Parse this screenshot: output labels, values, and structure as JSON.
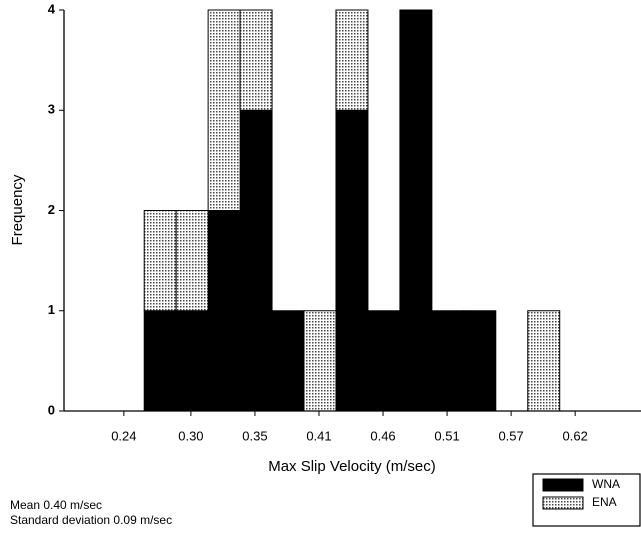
{
  "chart_data": {
    "type": "stacked_histogram",
    "xlabel": "Max Slip Velocity (m/sec)",
    "ylabel": "Frequency",
    "bins": [
      0.261,
      0.2877,
      0.3144,
      0.3411,
      0.3678,
      0.3945,
      0.4212,
      0.4479,
      0.4746,
      0.5013,
      0.528,
      0.5547,
      0.5814,
      0.6081
    ],
    "series": [
      {
        "name": "WNA",
        "color": "#000000",
        "values": [
          1,
          1,
          2,
          3,
          1,
          0,
          3,
          1,
          4,
          1,
          1,
          0,
          0
        ]
      },
      {
        "name": "ENA",
        "color": "#9a9a9a",
        "values": [
          1,
          1,
          2,
          1,
          0,
          1,
          1,
          0,
          0,
          0,
          0,
          0,
          1
        ]
      }
    ],
    "xlim": [
      0.194,
      0.676
    ],
    "ylim": [
      0,
      4
    ],
    "xticks": [
      {
        "value": 0.244,
        "label": "0.24"
      },
      {
        "value": 0.3,
        "label": "0.30"
      },
      {
        "value": 0.3535,
        "label": "0.35"
      },
      {
        "value": 0.407,
        "label": "0.41"
      },
      {
        "value": 0.4605,
        "label": "0.46"
      },
      {
        "value": 0.514,
        "label": "0.51"
      },
      {
        "value": 0.5675,
        "label": "0.57"
      },
      {
        "value": 0.621,
        "label": "0.62"
      }
    ],
    "yticks": [
      0,
      1,
      2,
      3,
      4
    ],
    "legend": "lower right",
    "annotations": [
      "Mean 0.40 m/sec",
      "Standard deviation 0.09 m/sec"
    ]
  }
}
